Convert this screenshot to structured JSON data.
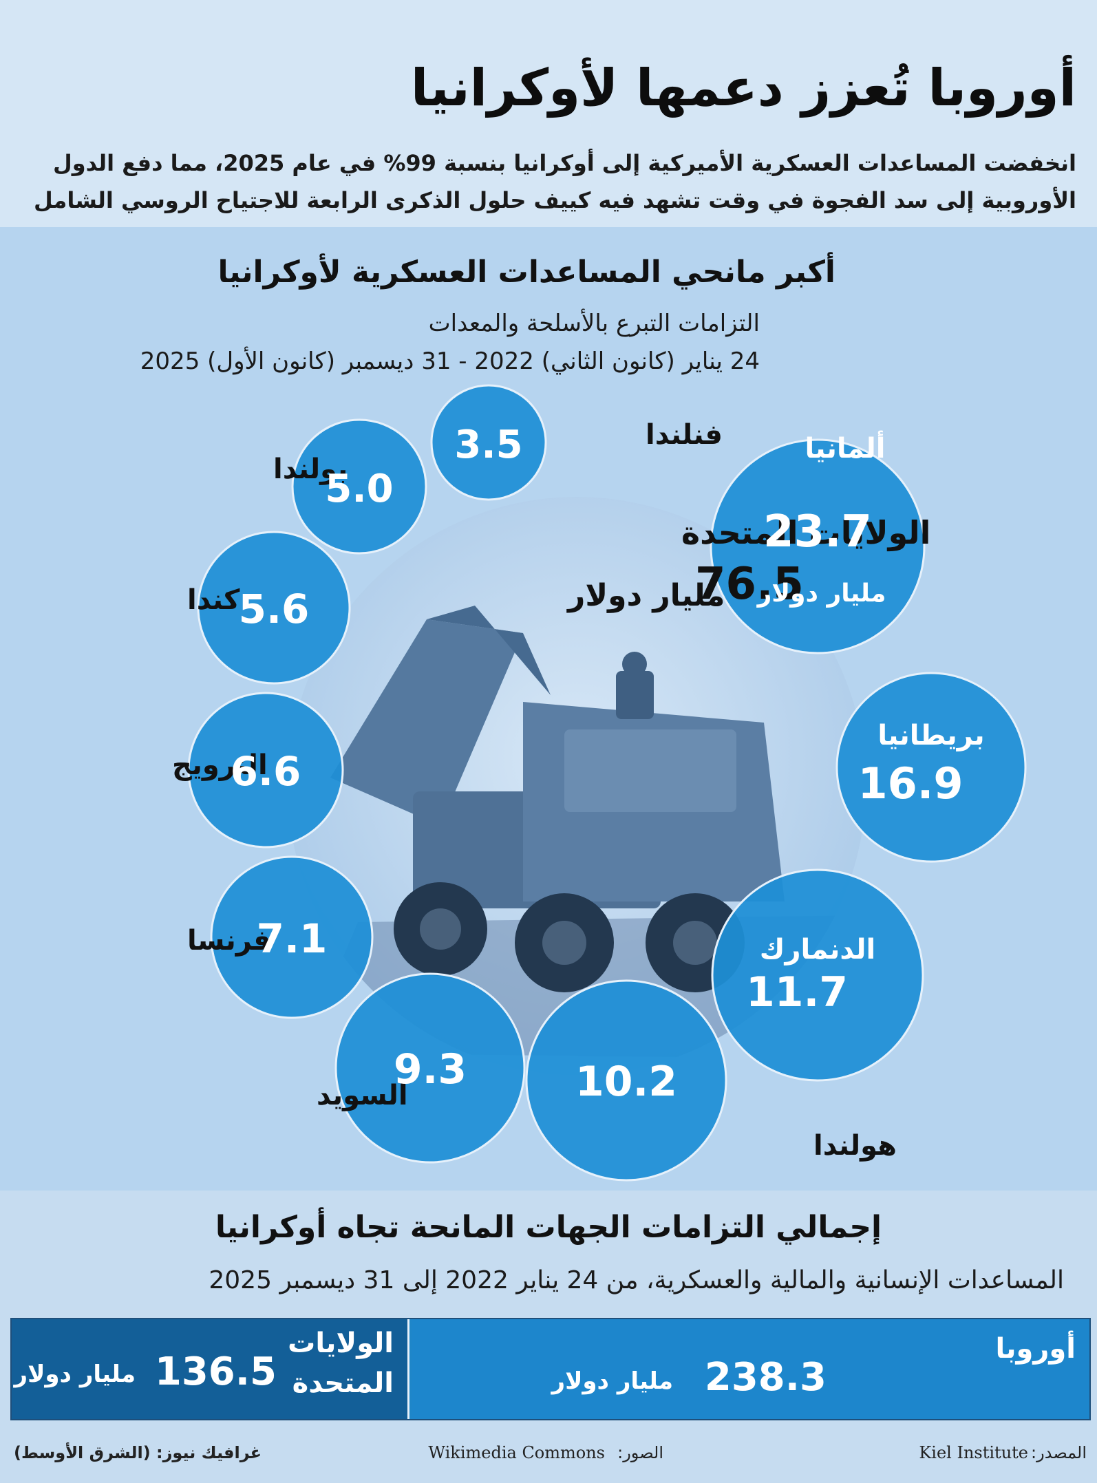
{
  "title": "أوروبا تُعزز دعمها لأوكرانيا",
  "subtitle_line1": "انخفضت المساعدات العسكرية الأميركية إلى أوكرانيا بنسبة 99% في عام 2025، مما دفع الدول",
  "subtitle_line2": "الأوروبية إلى سد الفجوة في وقت تشهد فيه كييف حلول الذكرى الرابعة للاجتياح  الروسي الشامل",
  "chart_data": {
    "type": "bubble",
    "title": "أكبر مانحي المساعدات العسكرية لأوكرانيا",
    "subtitle": "التزامات التبرع بالأسلحة والمعدات",
    "period": "24 يناير (كانون الثاني) 2022 - 31 ديسمبر (كانون الأول) 2025",
    "unit": "مليار دولار",
    "donors": [
      {
        "name": "الولايات المتحدة",
        "value": 76.5,
        "value_label": "76.5",
        "unit_label": "مليار دولار"
      },
      {
        "name": "ألمانيا",
        "value": 23.7,
        "value_label": "23.7",
        "unit_label": "مليار دولار"
      },
      {
        "name": "بريطانيا",
        "value": 16.9,
        "value_label": "16.9"
      },
      {
        "name": "الدنمارك",
        "value": 11.7,
        "value_label": "11.7"
      },
      {
        "name": "هولندا",
        "value": 10.2,
        "value_label": "10.2"
      },
      {
        "name": "السويد",
        "value": 9.3,
        "value_label": "9.3"
      },
      {
        "name": "فرنسا",
        "value": 7.1,
        "value_label": "7.1"
      },
      {
        "name": "النرويج",
        "value": 6.6,
        "value_label": "6.6"
      },
      {
        "name": "كندا",
        "value": 5.6,
        "value_label": "5.6"
      },
      {
        "name": "بولندا",
        "value": 5.0,
        "value_label": "5.0"
      },
      {
        "name": "فنلندا",
        "value": 3.5,
        "value_label": "3.5"
      }
    ]
  },
  "totals": {
    "title": "إجمالي التزامات الجهات المانحة تجاه أوكرانيا",
    "subtitle": "المساعدات الإنسانية والمالية والعسكرية، من 24 يناير 2022 إلى 31 ديسمبر 2025",
    "europe": {
      "label": "أوروبا",
      "value": "238.3",
      "unit": "مليار دولار"
    },
    "us": {
      "label_line1": "الولايات",
      "label_line2": "المتحدة",
      "value": "136.5",
      "unit": "مليار دولار"
    }
  },
  "footer": {
    "source_label": "المصدر:",
    "source": "Kiel Institute",
    "photos_label": "الصور:",
    "photos": "Wikimedia Commons",
    "credit": "غرافيك نيوز: (الشرق الأوسط)"
  },
  "colors": {
    "bubble": "#1e8fd6",
    "bubble_stroke": "#e6f1fb",
    "background": "#b6d4ef",
    "header": "#d5e6f5",
    "europe_cell": "#1d86cc",
    "us_cell": "#135f98"
  }
}
